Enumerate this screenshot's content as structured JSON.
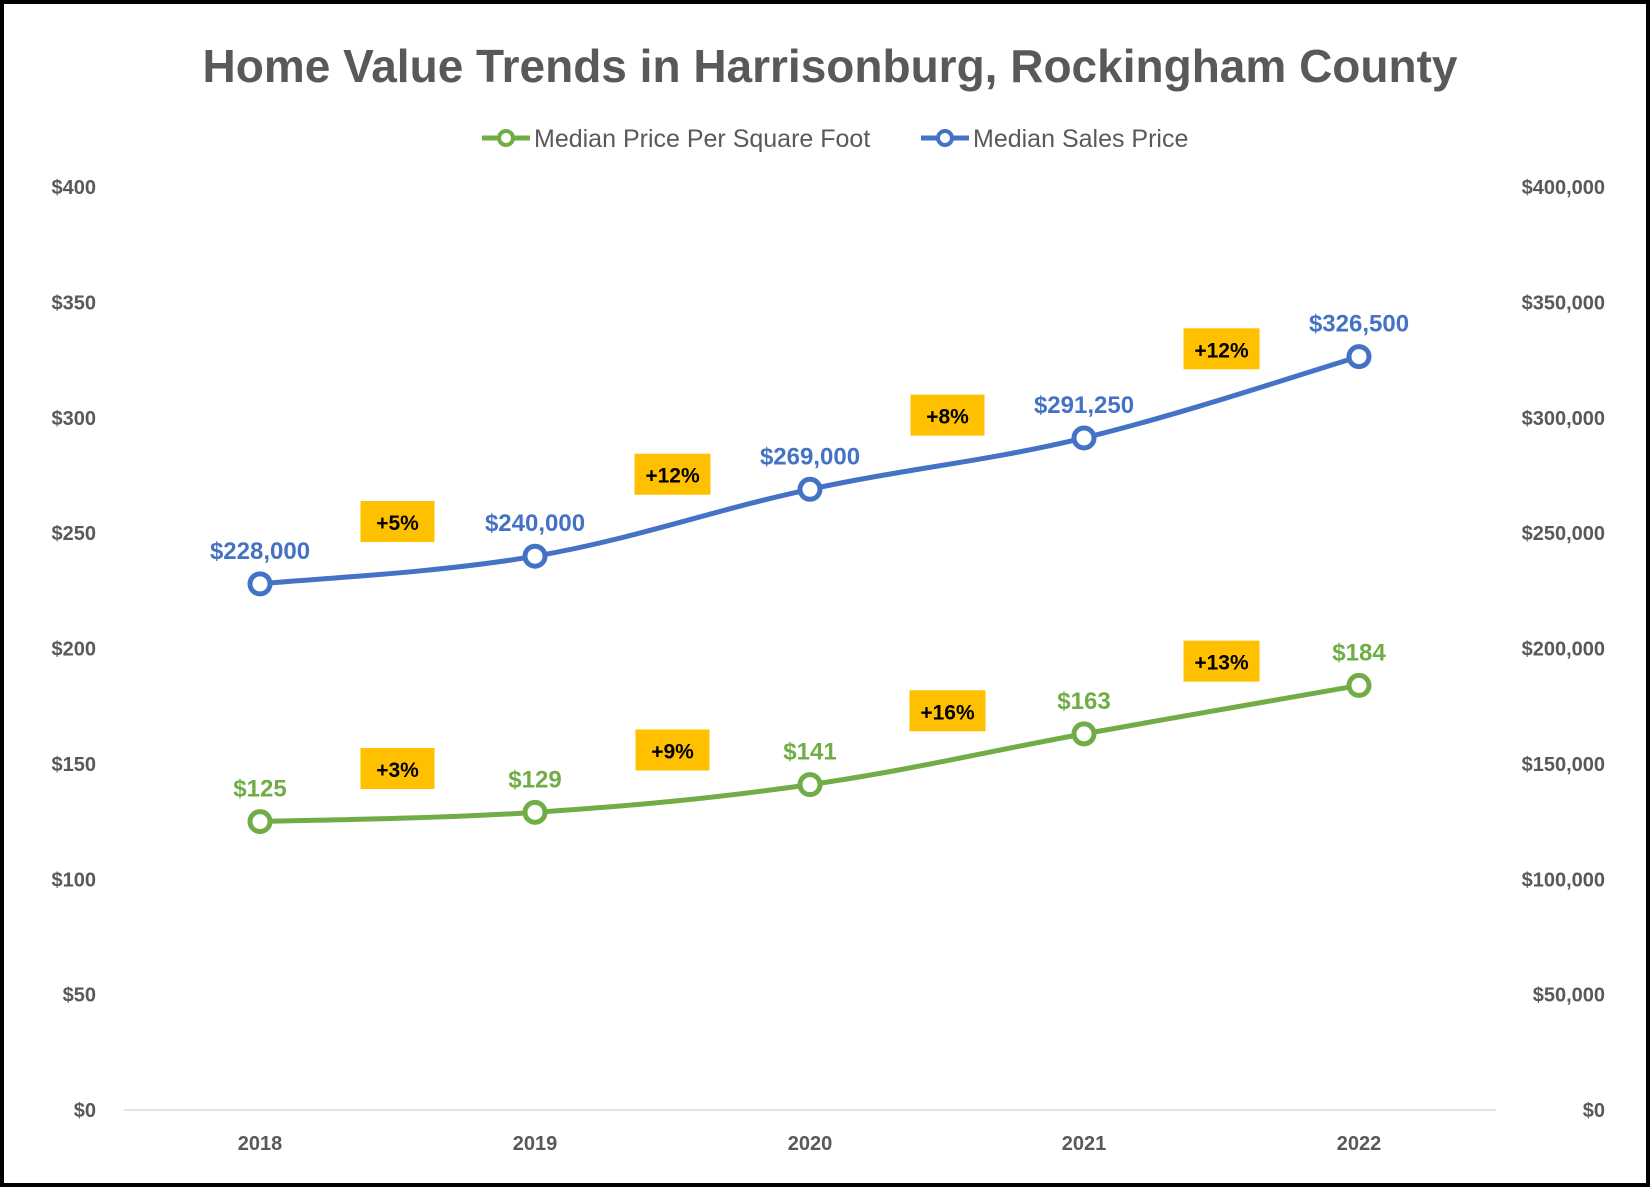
{
  "chart_data": {
    "type": "line",
    "title": "Home Value Trends in Harrisonburg, Rockingham County",
    "categories": [
      "2018",
      "2019",
      "2020",
      "2021",
      "2022"
    ],
    "series": [
      {
        "name": "Median Price Per Square Foot",
        "axis": "left",
        "color": "#70AD47",
        "values": [
          125,
          129,
          141,
          163,
          184
        ],
        "data_labels": [
          "$125",
          "$129",
          "$141",
          "$163",
          "$184"
        ],
        "changes": [
          "+3%",
          "+9%",
          "+16%",
          "+13%"
        ]
      },
      {
        "name": "Median Sales Price",
        "axis": "right",
        "color": "#4472C4",
        "values": [
          228000,
          240000,
          269000,
          291250,
          326500
        ],
        "data_labels": [
          "$228,000",
          "$240,000",
          "$269,000",
          "$291,250",
          "$326,500"
        ],
        "changes": [
          "+5%",
          "+12%",
          "+8%",
          "+12%"
        ]
      }
    ],
    "y_left": {
      "ylim": [
        0,
        400
      ],
      "ticks": [
        0,
        50,
        100,
        150,
        200,
        250,
        300,
        350,
        400
      ],
      "tick_labels": [
        "$0",
        "$50",
        "$100",
        "$150",
        "$200",
        "$250",
        "$300",
        "$350",
        "$400"
      ]
    },
    "y_right": {
      "ylim": [
        0,
        400000
      ],
      "ticks": [
        0,
        50000,
        100000,
        150000,
        200000,
        250000,
        300000,
        350000,
        400000
      ],
      "tick_labels": [
        "$0",
        "$50,000",
        "$100,000",
        "$150,000",
        "$200,000",
        "$250,000",
        "$300,000",
        "$350,000",
        "$400,000"
      ]
    },
    "legend_position": "top",
    "grid": false,
    "change_badge_color": "#FFC000",
    "text_color": "#595959"
  }
}
